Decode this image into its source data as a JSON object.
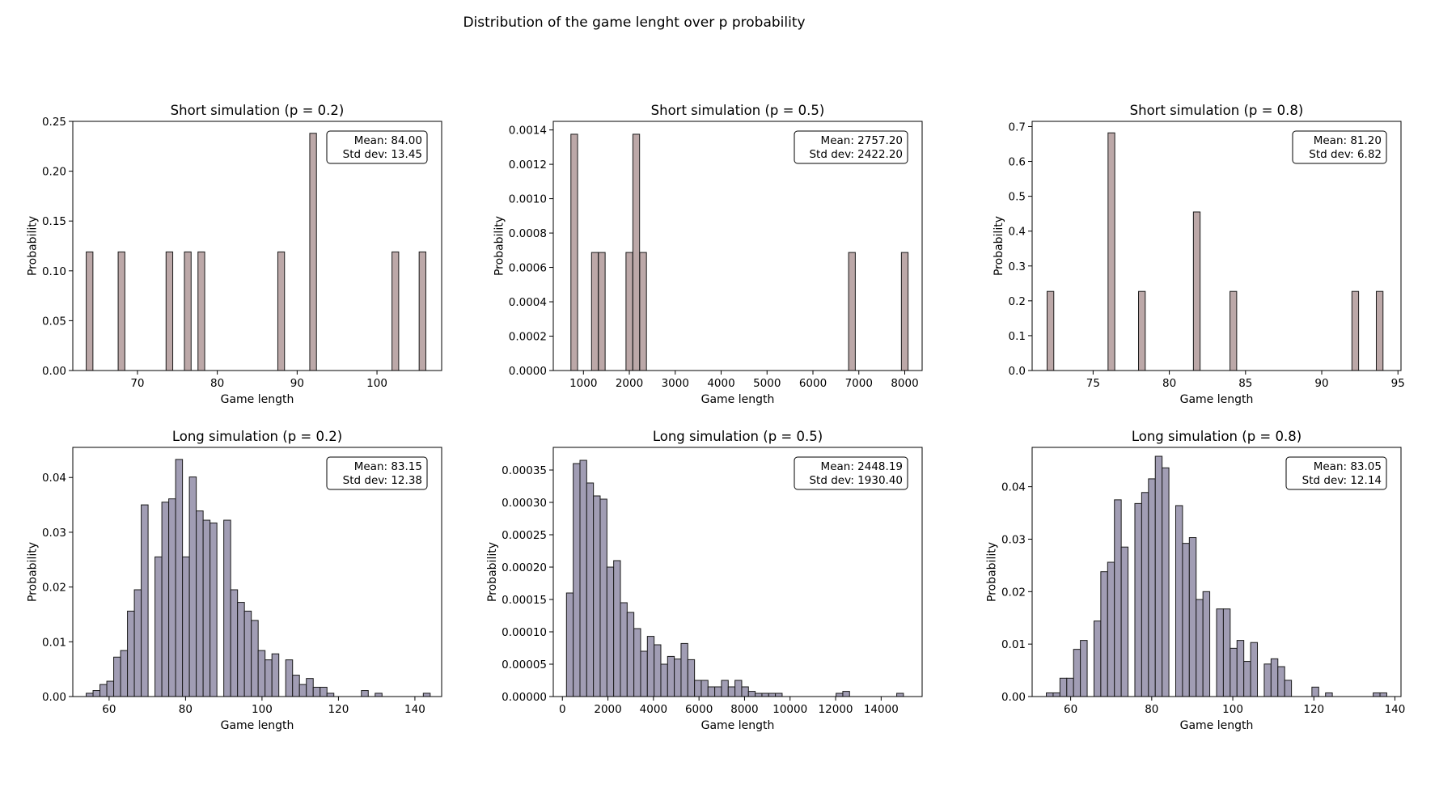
{
  "figure": {
    "title": "Distribution of the game lenght over p probability"
  },
  "colors": {
    "short_fill": "#bca8a8",
    "long_fill": "#a19db4",
    "edge": "#1a1a1a"
  },
  "chart_data": [
    {
      "type": "bar",
      "title": "Short simulation (p = 0.2)",
      "xlabel": "Game length",
      "ylabel": "Probability",
      "xlim": [
        61.9,
        108.1
      ],
      "ylim": [
        0,
        0.25
      ],
      "xticks": [
        70,
        80,
        90,
        100
      ],
      "yticks": [
        0.0,
        0.05,
        0.1,
        0.15,
        0.2,
        0.25
      ],
      "ytick_labels": [
        "0.00",
        "0.05",
        "0.10",
        "0.15",
        "0.20",
        "0.25"
      ],
      "fill": "short",
      "bin_width": 0.84,
      "bins": [
        [
          64,
          0.119
        ],
        [
          68,
          0.119
        ],
        [
          74,
          0.119
        ],
        [
          76.3,
          0.119
        ],
        [
          78,
          0.119
        ],
        [
          88,
          0.119
        ],
        [
          92,
          0.238
        ],
        [
          102.3,
          0.119
        ],
        [
          105.7,
          0.119
        ]
      ],
      "stats": {
        "mean": "Mean: 84.00",
        "std": "Std dev: 13.45"
      }
    },
    {
      "type": "bar",
      "title": "Short simulation (p = 0.5)",
      "xlabel": "Game length",
      "ylabel": "Probability",
      "xlim": [
        343,
        8379
      ],
      "ylim": [
        0,
        0.00145
      ],
      "xticks": [
        1000,
        2000,
        3000,
        4000,
        5000,
        6000,
        7000,
        8000
      ],
      "yticks": [
        0.0,
        0.0002,
        0.0004,
        0.0006,
        0.0008,
        0.001,
        0.0012,
        0.0014
      ],
      "ytick_labels": [
        "0.0000",
        "0.0002",
        "0.0004",
        "0.0006",
        "0.0008",
        "0.0010",
        "0.0012",
        "0.0014"
      ],
      "fill": "short",
      "bin_width": 146,
      "bins": [
        [
          800,
          0.001375
        ],
        [
          1250,
          0.000687
        ],
        [
          1400,
          0.000687
        ],
        [
          2000,
          0.000687
        ],
        [
          2150,
          0.001375
        ],
        [
          2300,
          0.000687
        ],
        [
          6850,
          0.000687
        ],
        [
          8000,
          0.000687
        ]
      ],
      "stats": {
        "mean": "Mean: 2757.20",
        "std": "Std dev: 2422.20"
      }
    },
    {
      "type": "bar",
      "title": "Short simulation (p = 0.8)",
      "xlabel": "Game length",
      "ylabel": "Probability",
      "xlim": [
        71.0,
        95.2
      ],
      "ylim": [
        0,
        0.715
      ],
      "xticks": [
        75,
        80,
        85,
        90,
        95
      ],
      "yticks": [
        0.0,
        0.1,
        0.2,
        0.3,
        0.4,
        0.5,
        0.6,
        0.7
      ],
      "ytick_labels": [
        "0.0",
        "0.1",
        "0.2",
        "0.3",
        "0.4",
        "0.5",
        "0.6",
        "0.7"
      ],
      "fill": "short",
      "bin_width": 0.44,
      "bins": [
        [
          72.2,
          0.227
        ],
        [
          76.2,
          0.682
        ],
        [
          78.2,
          0.227
        ],
        [
          81.8,
          0.455
        ],
        [
          84.2,
          0.227
        ],
        [
          92.2,
          0.227
        ],
        [
          93.8,
          0.227
        ]
      ],
      "stats": {
        "mean": "Mean: 81.20",
        "std": "Std dev: 6.82"
      }
    },
    {
      "type": "bar",
      "title": "Long simulation (p = 0.2)",
      "xlabel": "Game length",
      "ylabel": "Probability",
      "xlim": [
        50.5,
        147.0
      ],
      "ylim": [
        0,
        0.0455
      ],
      "xticks": [
        60,
        80,
        100,
        120,
        140
      ],
      "yticks": [
        0.0,
        0.01,
        0.02,
        0.03,
        0.04
      ],
      "ytick_labels": [
        "0.00",
        "0.01",
        "0.02",
        "0.03",
        "0.04"
      ],
      "fill": "long",
      "bin_start": 54,
      "bin_width": 1.8,
      "values": [
        0.0006,
        0.0011,
        0.0022,
        0.0028,
        0.0072,
        0.0084,
        0.0156,
        0.0195,
        0.035,
        0,
        0.0255,
        0.0355,
        0.0361,
        0.0433,
        0.0255,
        0.0401,
        0.0339,
        0.0322,
        0.0317,
        0,
        0.0322,
        0.0195,
        0.0172,
        0.0156,
        0.0139,
        0.0084,
        0.0067,
        0.0078,
        0,
        0.0067,
        0.0039,
        0.0022,
        0.0033,
        0.0017,
        0.0017,
        0.0006,
        0,
        0,
        0,
        0,
        0.0011,
        0,
        0.0006,
        0,
        0,
        0,
        0,
        0,
        0,
        0.0006
      ],
      "stats": {
        "mean": "Mean: 83.15",
        "std": "Std dev: 12.38"
      }
    },
    {
      "type": "bar",
      "title": "Long simulation (p = 0.5)",
      "xlabel": "Game length",
      "ylabel": "Probability",
      "xlim": [
        -400,
        15800
      ],
      "ylim": [
        0,
        0.000385
      ],
      "xticks": [
        0,
        2000,
        4000,
        6000,
        8000,
        10000,
        12000,
        14000
      ],
      "yticks": [
        0.0,
        5e-05,
        0.0001,
        0.00015,
        0.0002,
        0.00025,
        0.0003,
        0.00035
      ],
      "ytick_labels": [
        "0.00000",
        "0.00005",
        "0.00010",
        "0.00015",
        "0.00020",
        "0.00025",
        "0.00030",
        "0.00035"
      ],
      "fill": "long",
      "bin_start": 180,
      "bin_width": 296,
      "values": [
        0.00016,
        0.00036,
        0.000365,
        0.00033,
        0.00031,
        0.000305,
        0.0002,
        0.00021,
        0.000145,
        0.00013,
        0.000105,
        7e-05,
        9.3e-05,
        8e-05,
        5e-05,
        6.2e-05,
        5.8e-05,
        8.2e-05,
        5.7e-05,
        2.5e-05,
        2.5e-05,
        1.5e-05,
        1.5e-05,
        2.5e-05,
        1.5e-05,
        2.5e-05,
        1.5e-05,
        8e-06,
        5e-06,
        5e-06,
        5e-06,
        5e-06,
        0,
        0,
        0,
        0,
        0,
        0,
        0,
        0,
        5e-06,
        8e-06,
        0,
        0,
        0,
        0,
        0,
        0,
        0,
        5e-06
      ],
      "stats": {
        "mean": "Mean: 2448.19",
        "std": "Std dev: 1930.40"
      }
    },
    {
      "type": "bar",
      "title": "Long simulation (p = 0.8)",
      "xlabel": "Game length",
      "ylabel": "Probability",
      "xlim": [
        50.5,
        141.5
      ],
      "ylim": [
        0,
        0.0475
      ],
      "xticks": [
        60,
        80,
        100,
        120,
        140
      ],
      "yticks": [
        0.0,
        0.01,
        0.02,
        0.03,
        0.04
      ],
      "ytick_labels": [
        "0.00",
        "0.01",
        "0.02",
        "0.03",
        "0.04"
      ],
      "fill": "long",
      "bin_start": 54,
      "bin_width": 1.68,
      "values": [
        0.0007,
        0.0007,
        0.0035,
        0.0035,
        0.009,
        0.0107,
        0,
        0.0144,
        0.0238,
        0.0256,
        0.0375,
        0.0285,
        0,
        0.0368,
        0.0389,
        0.0415,
        0.0458,
        0.0436,
        0,
        0.0364,
        0.0292,
        0.0303,
        0.0185,
        0.02,
        0,
        0.0167,
        0.0167,
        0.0092,
        0.0107,
        0.0067,
        0.0103,
        0,
        0.0062,
        0.0072,
        0.0057,
        0.0031,
        0,
        0,
        0,
        0.0018,
        0,
        0.0007,
        0,
        0,
        0,
        0,
        0,
        0,
        0.0007,
        0.0007
      ],
      "stats": {
        "mean": "Mean: 83.05",
        "std": "Std dev: 12.14"
      }
    }
  ]
}
